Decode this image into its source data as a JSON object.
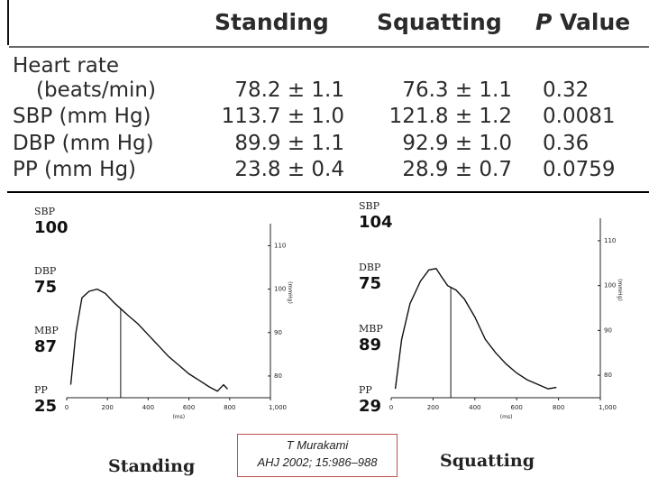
{
  "table": {
    "headers": {
      "standing": "Standing",
      "squatting": "Squatting",
      "p_letter": "P",
      "p_word": " Value"
    },
    "rows": [
      {
        "label": "Heart rate",
        "label2": "(beats/min)",
        "standing": "78.2 ± 1.1",
        "squatting": "76.3 ± 1.1",
        "p": "0.32"
      },
      {
        "label": "SBP (mm Hg)",
        "standing": "113.7 ± 1.0",
        "squatting": "121.8 ± 1.2",
        "p": "0.0081"
      },
      {
        "label": "DBP (mm Hg)",
        "standing": "89.9 ± 1.1",
        "squatting": "92.9 ± 1.0",
        "p": "0.36"
      },
      {
        "label": "PP (mm Hg)",
        "standing": "23.8 ± 0.4",
        "squatting": "28.9 ± 0.7",
        "p": "0.0759"
      }
    ]
  },
  "chart_data": [
    {
      "type": "line",
      "title": "Standing",
      "xlabel": "(ms)",
      "ylabel": "(mmHg)",
      "xlim": [
        0,
        1000
      ],
      "ylim": [
        75,
        113
      ],
      "x_ticks": [
        "0",
        "200",
        "400",
        "600",
        "800",
        "1,000"
      ],
      "y_ticks": [
        "80",
        "90",
        "100",
        "110"
      ],
      "readouts": [
        {
          "name": "SBP",
          "value": "100"
        },
        {
          "name": "DBP",
          "value": "75"
        },
        {
          "name": "MBP",
          "value": "87"
        },
        {
          "name": "PP",
          "value": "25"
        }
      ],
      "series": [
        {
          "name": "pressure waveform",
          "x": [
            20,
            45,
            75,
            110,
            150,
            190,
            230,
            265,
            300,
            350,
            400,
            450,
            500,
            550,
            600,
            650,
            700,
            740,
            770,
            790
          ],
          "y": [
            78,
            90,
            98,
            99.5,
            100,
            99,
            97,
            95.5,
            94,
            92,
            89.5,
            87,
            84.5,
            82.5,
            80.5,
            79,
            77.5,
            76.5,
            78,
            77
          ]
        }
      ],
      "marker_x": 265
    },
    {
      "type": "line",
      "title": "Squatting",
      "xlabel": "(ms)",
      "ylabel": "(mmHg)",
      "xlim": [
        0,
        1000
      ],
      "ylim": [
        75,
        113
      ],
      "x_ticks": [
        "0",
        "200",
        "400",
        "600",
        "800",
        "1,000"
      ],
      "y_ticks": [
        "80",
        "90",
        "100",
        "110"
      ],
      "readouts": [
        {
          "name": "SBP",
          "value": "104"
        },
        {
          "name": "DBP",
          "value": "75"
        },
        {
          "name": "MBP",
          "value": "89"
        },
        {
          "name": "PP",
          "value": "29"
        }
      ],
      "series": [
        {
          "name": "pressure waveform",
          "x": [
            20,
            50,
            90,
            140,
            180,
            215,
            240,
            270,
            310,
            350,
            400,
            450,
            500,
            550,
            600,
            650,
            700,
            750,
            790
          ],
          "y": [
            77,
            88,
            96,
            101,
            103.5,
            103.8,
            102,
            100,
            99,
            97,
            93,
            88,
            85,
            82.5,
            80.5,
            79,
            78,
            77,
            77.3
          ]
        }
      ],
      "marker_x": 285
    }
  ],
  "captions": {
    "left": "Standing",
    "right": "Squatting"
  },
  "citation": {
    "line1": "T Murakami",
    "line2": "AHJ 2002; 15:986–988"
  }
}
